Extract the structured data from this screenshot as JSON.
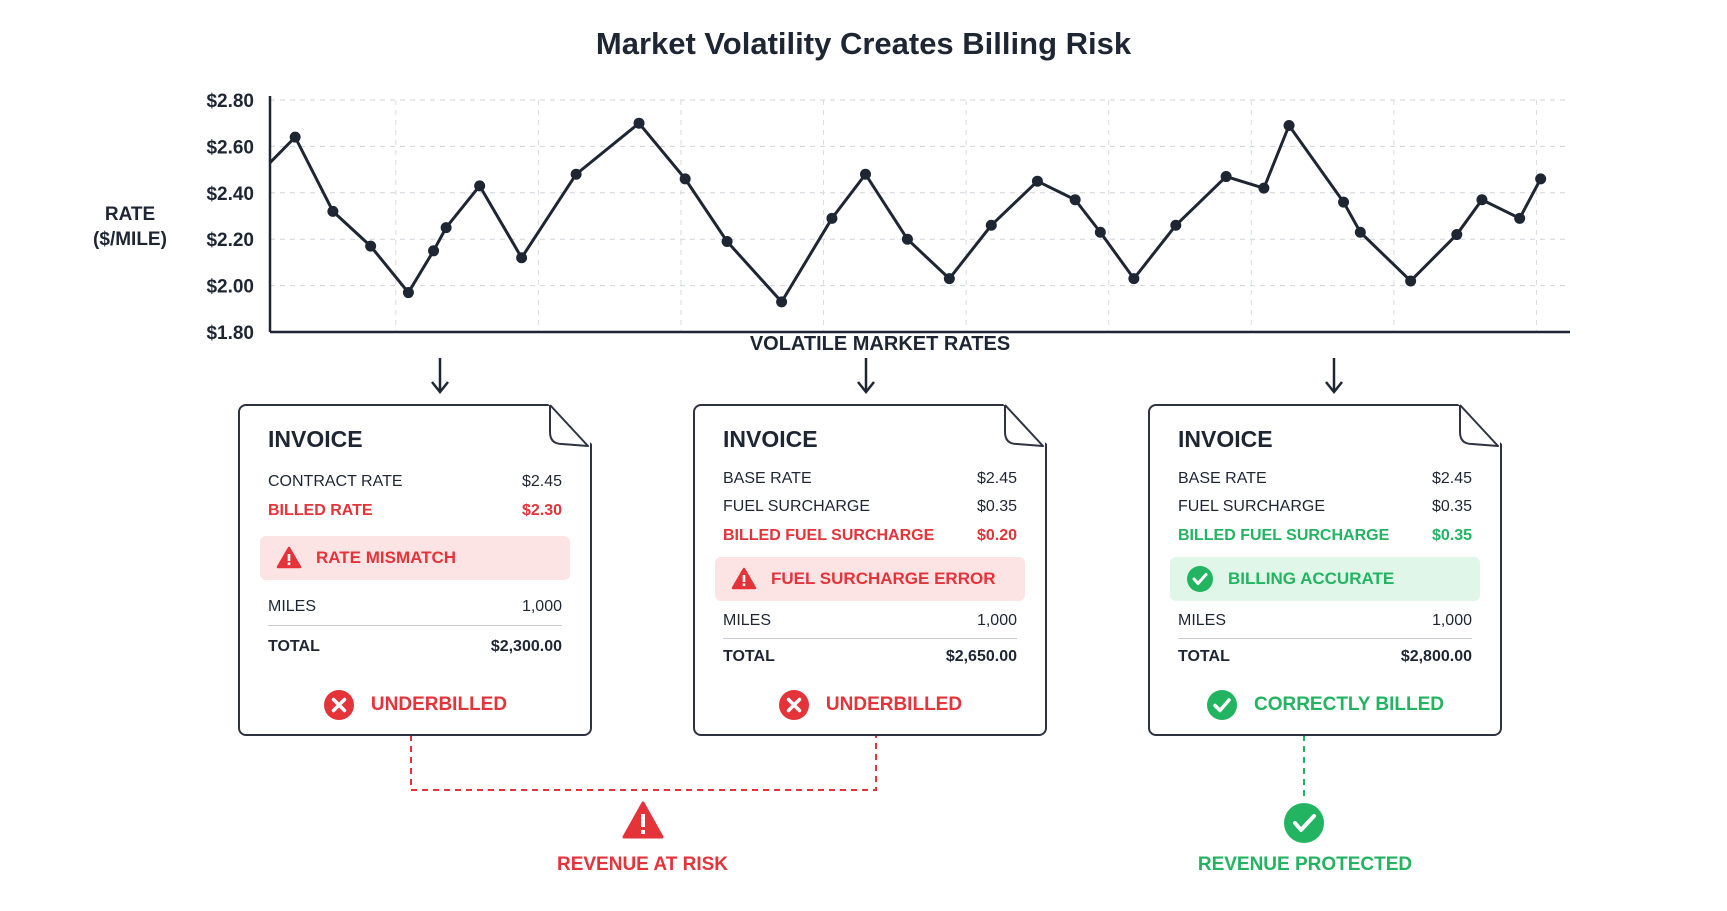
{
  "chart_data": {
    "type": "line",
    "title": "Market Volatility Creates Billing Risk",
    "ylabel_line1": "RATE",
    "ylabel_line2": "($/MILE)",
    "xlabel": "VOLATILE MARKET RATES",
    "ylim": [
      1.8,
      2.8
    ],
    "yticks": [
      "$1.80",
      "$2.00",
      "$2.20",
      "$2.40",
      "$2.60",
      "$2.80"
    ],
    "grid": true,
    "x": [
      0,
      0.6,
      1.5,
      2.4,
      3.3,
      3.9,
      4.2,
      5.0,
      6.0,
      7.3,
      8.8,
      9.9,
      10.9,
      12.2,
      13.4,
      14.2,
      15.2,
      16.2,
      17.2,
      18.3,
      19.2,
      19.8,
      20.6,
      21.6,
      22.8,
      23.7,
      24.3,
      25.6,
      26.0,
      27.2,
      28.3,
      28.9,
      29.8,
      30.3
    ],
    "values": [
      2.53,
      2.64,
      2.32,
      2.17,
      1.97,
      2.15,
      2.25,
      2.43,
      2.12,
      2.48,
      2.7,
      2.46,
      2.19,
      1.93,
      2.29,
      2.48,
      2.2,
      2.03,
      2.26,
      2.45,
      2.37,
      2.23,
      2.03,
      2.26,
      2.47,
      2.42,
      2.69,
      2.36,
      2.23,
      2.02,
      2.22,
      2.37,
      2.29,
      2.46
    ]
  },
  "invoices": [
    {
      "title": "INVOICE",
      "row1": {
        "label": "CONTRACT RATE",
        "value": "$2.45"
      },
      "row2": {
        "label": "BILLED RATE",
        "value": "$2.30"
      },
      "banner": "RATE MISMATCH",
      "miles": {
        "label": "MILES",
        "value": "1,000"
      },
      "total": {
        "label": "TOTAL",
        "value": "$2,300.00"
      },
      "status": "UNDERBILLED"
    },
    {
      "title": "INVOICE",
      "row1": {
        "label": "BASE RATE",
        "value": "$2.45"
      },
      "row2": {
        "label": "FUEL SURCHARGE",
        "value": "$0.35"
      },
      "row3": {
        "label": "BILLED FUEL SURCHARGE",
        "value": "$0.20"
      },
      "banner": "FUEL SURCHARGE ERROR",
      "miles": {
        "label": "MILES",
        "value": "1,000"
      },
      "total": {
        "label": "TOTAL",
        "value": "$2,650.00"
      },
      "status": "UNDERBILLED"
    },
    {
      "title": "INVOICE",
      "row1": {
        "label": "BASE RATE",
        "value": "$2.45"
      },
      "row2": {
        "label": "FUEL SURCHARGE",
        "value": "$0.35"
      },
      "row3": {
        "label": "BILLED FUEL SURCHARGE",
        "value": "$0.35"
      },
      "banner": "BILLING ACCURATE",
      "miles": {
        "label": "MILES",
        "value": "1,000"
      },
      "total": {
        "label": "TOTAL",
        "value": "$2,800.00"
      },
      "status": "CORRECTLY BILLED"
    }
  ],
  "outcomes": {
    "risk": "REVENUE AT RISK",
    "protected": "REVENUE PROTECTED"
  },
  "colors": {
    "error": "#e5333a",
    "success": "#23b461",
    "ink": "#1f2633"
  },
  "icons": [
    "warning-icon",
    "x-circle-icon",
    "check-circle-icon",
    "arrow-down-icon"
  ]
}
